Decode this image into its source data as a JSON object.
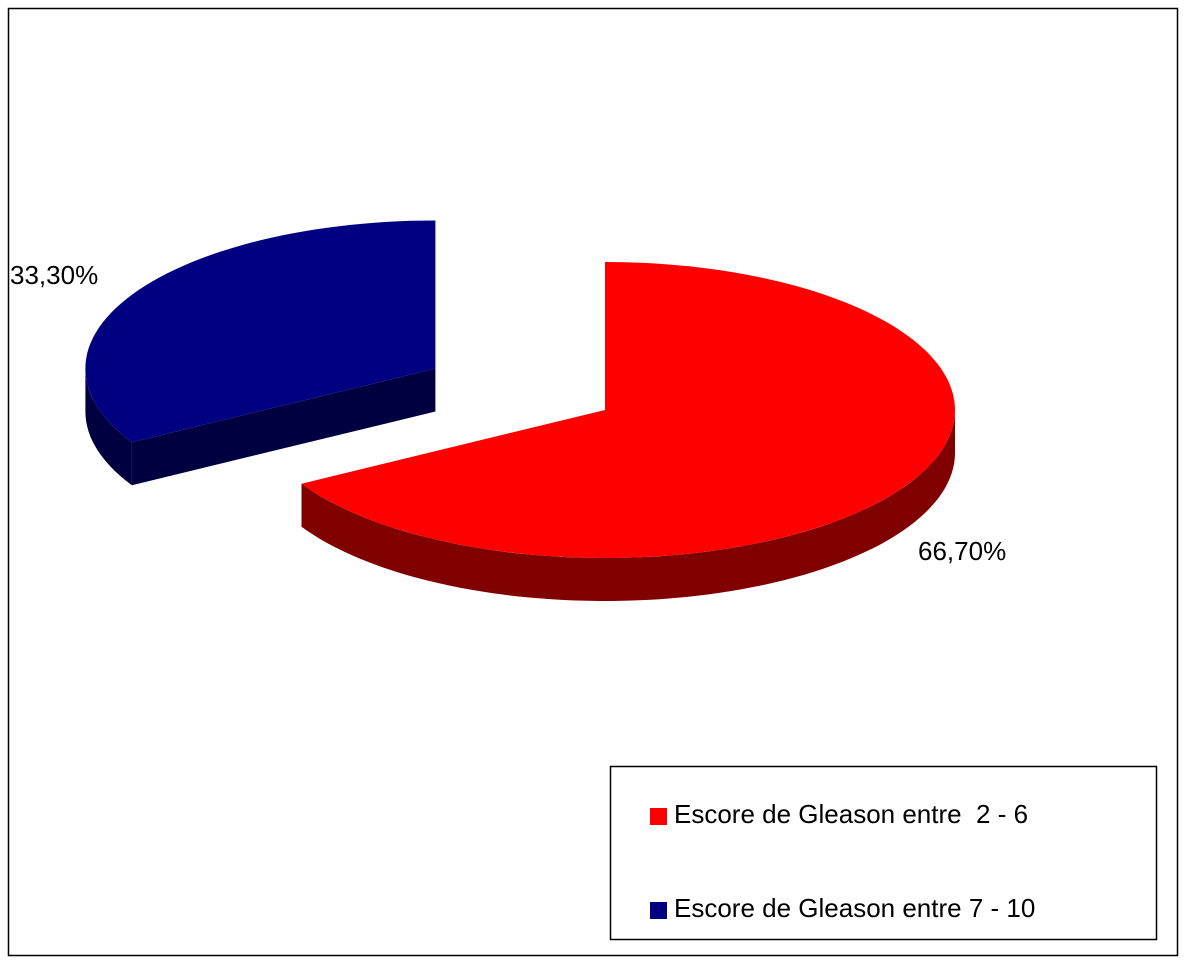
{
  "chart_data": {
    "type": "pie",
    "categories": [
      "Escore de Gleason entre  2 - 6",
      "Escore de Gleason entre 7 - 10"
    ],
    "values": [
      66.7,
      33.3
    ],
    "value_labels": [
      "66,70%",
      "33,30%"
    ],
    "colors": [
      "#ff0000",
      "#000080"
    ],
    "legend": "bottom-right"
  }
}
